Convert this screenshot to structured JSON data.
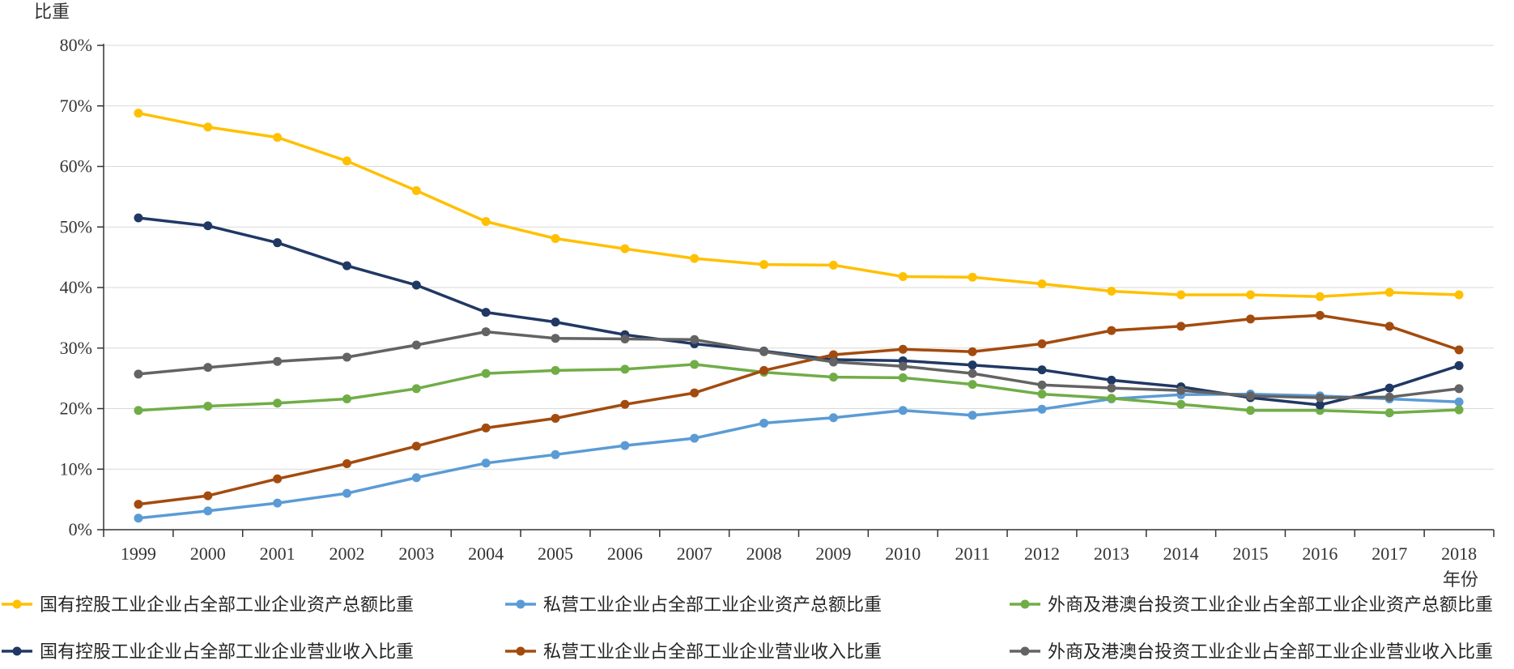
{
  "chart_data": {
    "type": "line",
    "ylabel": "比重",
    "xlabel": "年份",
    "ylim": [
      0,
      80
    ],
    "yticks": [
      "0%",
      "10%",
      "20%",
      "30%",
      "40%",
      "50%",
      "60%",
      "70%",
      "80%"
    ],
    "yticks_values": [
      0,
      10,
      20,
      30,
      40,
      50,
      60,
      70,
      80
    ],
    "grid": true,
    "legend_position": "bottom",
    "categories": [
      "1999",
      "2000",
      "2001",
      "2002",
      "2003",
      "2004",
      "2005",
      "2006",
      "2007",
      "2008",
      "2009",
      "2010",
      "2011",
      "2012",
      "2013",
      "2014",
      "2015",
      "2016",
      "2017",
      "2018"
    ],
    "series": [
      {
        "name": "国有控股工业企业占全部工业企业资产总额比重",
        "color": "#FFC000",
        "values": [
          68.8,
          66.5,
          64.8,
          60.9,
          56.0,
          50.9,
          48.1,
          46.4,
          44.8,
          43.8,
          43.7,
          41.8,
          41.7,
          40.6,
          39.4,
          38.8,
          38.8,
          38.5,
          39.2,
          38.8
        ]
      },
      {
        "name": "私营工业企业占全部工业企业资产总额比重",
        "color": "#5B9BD5",
        "values": [
          1.9,
          3.1,
          4.4,
          6.0,
          8.6,
          11.0,
          12.4,
          13.9,
          15.1,
          17.6,
          18.5,
          19.7,
          18.9,
          19.9,
          21.6,
          22.3,
          22.4,
          22.1,
          21.6,
          21.1
        ]
      },
      {
        "name": "外商及港澳台投资工业企业占全部工业企业资产总额比重",
        "color": "#70AD47",
        "values": [
          19.7,
          20.4,
          20.9,
          21.6,
          23.3,
          25.8,
          26.3,
          26.5,
          27.3,
          26.0,
          25.2,
          25.1,
          24.0,
          22.4,
          21.7,
          20.7,
          19.7,
          19.7,
          19.3,
          19.8
        ]
      },
      {
        "name": "国有控股工业企业占全部工业企业营业收入比重",
        "color": "#203864",
        "values": [
          51.5,
          50.2,
          47.4,
          43.6,
          40.4,
          35.9,
          34.3,
          32.2,
          30.7,
          29.5,
          28.1,
          27.9,
          27.2,
          26.4,
          24.7,
          23.6,
          21.8,
          20.6,
          23.4,
          27.1
        ]
      },
      {
        "name": "私营工业企业占全部工业企业营业收入比重",
        "color": "#A34B0F",
        "values": [
          4.2,
          5.6,
          8.4,
          10.9,
          13.8,
          16.8,
          18.4,
          20.7,
          22.6,
          26.3,
          28.9,
          29.8,
          29.4,
          30.7,
          32.9,
          33.6,
          34.8,
          35.4,
          33.6,
          29.7
        ]
      },
      {
        "name": "外商及港澳台投资工业企业占全部工业企业营业收入比重",
        "color": "#636363",
        "values": [
          25.7,
          26.8,
          27.8,
          28.5,
          30.5,
          32.7,
          31.6,
          31.5,
          31.4,
          29.4,
          27.7,
          27.0,
          25.8,
          23.9,
          23.4,
          23.0,
          22.1,
          21.8,
          21.9,
          23.3
        ]
      }
    ]
  }
}
